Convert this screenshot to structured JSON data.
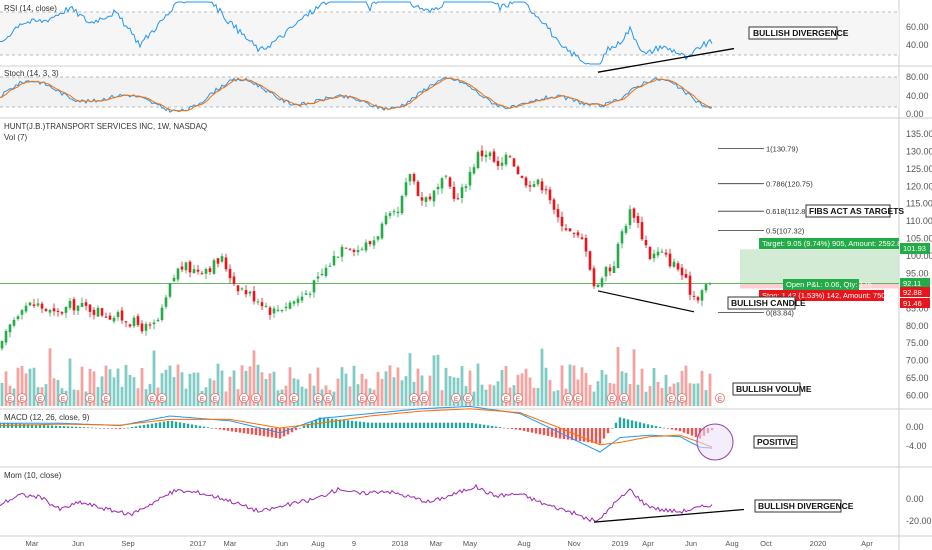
{
  "colors": {
    "up": "#26a69a",
    "down": "#ef5350",
    "candle_up": "#22ab46",
    "candle_down": "#e8161c",
    "rsi": "#2196f3",
    "stoch_k": "#2196f3",
    "stoch_d": "#ff6d00",
    "macd": "#2196f3",
    "signal": "#ff6d00",
    "mom": "#9c27b0",
    "price_line": "#4caf50",
    "target_zone": "#c8e6c9",
    "stop_zone": "#ffcdd2",
    "label_green": "#22ab46",
    "label_red": "#e8161c"
  },
  "panes": {
    "rsi": {
      "title": "RSI (14, close)",
      "ticks": [
        "60.00",
        "40.00"
      ],
      "annotation": "BULLISH DIVERGENCE"
    },
    "stoch": {
      "title": "Stoch (14, 3, 3)",
      "ticks": [
        "80.00",
        "40.00",
        "0.00"
      ]
    },
    "price": {
      "title": "HUNT(J.B.)TRANSPORT SERVICES INC, 1W, NASDAQ",
      "vol_title": "Vol (7)",
      "ticks": [
        "135.00",
        "130.00",
        "125.00",
        "120.00",
        "115.00",
        "110.00",
        "105.00",
        "100.00",
        "95.00",
        "90.00",
        "85.00",
        "80.00",
        "75.00",
        "70.00",
        "65.00",
        "60.00"
      ],
      "price_labels": {
        "upper": "101.93",
        "current": "92.11",
        "stop_top": "92.88",
        "stop_bottom": "91.46"
      },
      "fib_levels": [
        {
          "label": "1(130.79)",
          "value": 130.79
        },
        {
          "label": "0.786(120.75)",
          "value": 120.75
        },
        {
          "label": "0.618(112.86)",
          "value": 112.86
        },
        {
          "label": "0.5(107.32)",
          "value": 107.32
        },
        {
          "label": "0(83.84)",
          "value": 83.84
        }
      ],
      "target_label": "Target: 9.05 (9.74%) 905, Amount: 2592.8",
      "open_label": "Open P&L: 0.06, Qty: 176",
      "stop_label": "Stop: 1.42 (1.53%) 142, Amount: 750.08",
      "annotations": [
        "FIBS ACT AS TARGETS",
        "BULLISH CANDLE",
        "BULLISH VOLUME"
      ]
    },
    "macd": {
      "title": "MACD (12, 26, close, 9)",
      "ticks": [
        "0.00",
        "-4.00"
      ],
      "annotation": "POSITIVE"
    },
    "mom": {
      "title": "Mom (10, close)",
      "ticks": [
        "0.00",
        "-20.00"
      ],
      "annotation": "BULLISH DIVERGENCE"
    }
  },
  "time_axis": [
    "Mar",
    "Jun",
    "Sep",
    "2017",
    "Mar",
    "Jun",
    "Aug",
    "9",
    "2018",
    "Mar",
    "May",
    "Aug",
    "Nov",
    "2019",
    "Apr",
    "Jun",
    "Aug",
    "Oct",
    "2020",
    "Apr"
  ],
  "earnings_marker": "E",
  "chart_data": {
    "type": "candlestick",
    "title": "HUNT(J.B.)TRANSPORT SERVICES INC, 1W, NASDAQ",
    "interval": "1W",
    "price_range": [
      57,
      137
    ],
    "close_path": [
      [
        0,
        73
      ],
      [
        10,
        80
      ],
      [
        22,
        86
      ],
      [
        38,
        86
      ],
      [
        55,
        83
      ],
      [
        72,
        86
      ],
      [
        90,
        85
      ],
      [
        110,
        83
      ],
      [
        125,
        82
      ],
      [
        140,
        80
      ],
      [
        150,
        79
      ],
      [
        160,
        82
      ],
      [
        172,
        93
      ],
      [
        180,
        97
      ],
      [
        195,
        96
      ],
      [
        210,
        97
      ],
      [
        222,
        99
      ],
      [
        235,
        92
      ],
      [
        250,
        89
      ],
      [
        262,
        87
      ],
      [
        272,
        84
      ],
      [
        285,
        86
      ],
      [
        300,
        88
      ],
      [
        315,
        92
      ],
      [
        330,
        98
      ],
      [
        345,
        104
      ],
      [
        358,
        102
      ],
      [
        372,
        104
      ],
      [
        385,
        110
      ],
      [
        398,
        112
      ],
      [
        410,
        124
      ],
      [
        422,
        116
      ],
      [
        435,
        118
      ],
      [
        445,
        122
      ],
      [
        458,
        116
      ],
      [
        470,
        124
      ],
      [
        478,
        129
      ],
      [
        488,
        130
      ],
      [
        498,
        125
      ],
      [
        510,
        129
      ],
      [
        522,
        122
      ],
      [
        535,
        121
      ],
      [
        547,
        120
      ],
      [
        555,
        111
      ],
      [
        562,
        110
      ],
      [
        572,
        106
      ],
      [
        585,
        104
      ],
      [
        596,
        89
      ],
      [
        604,
        97
      ],
      [
        612,
        96
      ],
      [
        622,
        107
      ],
      [
        632,
        114
      ],
      [
        642,
        106
      ],
      [
        650,
        100
      ],
      [
        660,
        101
      ],
      [
        668,
        99
      ],
      [
        680,
        96
      ],
      [
        688,
        91
      ],
      [
        696,
        88
      ],
      [
        704,
        91
      ],
      [
        712,
        92
      ]
    ],
    "fib_levels": [
      130.79,
      120.75,
      112.86,
      107.32,
      83.84
    ],
    "rsi": [
      [
        0,
        45
      ],
      [
        20,
        55
      ],
      [
        45,
        56
      ],
      [
        70,
        62
      ],
      [
        90,
        55
      ],
      [
        115,
        60
      ],
      [
        140,
        45
      ],
      [
        160,
        55
      ],
      [
        180,
        65
      ],
      [
        205,
        68
      ],
      [
        230,
        55
      ],
      [
        260,
        42
      ],
      [
        280,
        48
      ],
      [
        305,
        58
      ],
      [
        330,
        66
      ],
      [
        350,
        72
      ],
      [
        370,
        62
      ],
      [
        395,
        74
      ],
      [
        410,
        64
      ],
      [
        430,
        60
      ],
      [
        455,
        68
      ],
      [
        480,
        70
      ],
      [
        500,
        62
      ],
      [
        520,
        66
      ],
      [
        545,
        55
      ],
      [
        560,
        44
      ],
      [
        575,
        40
      ],
      [
        590,
        35
      ],
      [
        598,
        32
      ],
      [
        606,
        42
      ],
      [
        618,
        45
      ],
      [
        630,
        52
      ],
      [
        645,
        40
      ],
      [
        660,
        44
      ],
      [
        675,
        42
      ],
      [
        688,
        38
      ],
      [
        700,
        44
      ],
      [
        712,
        46
      ]
    ],
    "macd": [
      [
        0,
        1
      ],
      [
        60,
        1
      ],
      [
        120,
        0.5
      ],
      [
        170,
        2.5
      ],
      [
        230,
        1.5
      ],
      [
        280,
        -1
      ],
      [
        320,
        2
      ],
      [
        370,
        3
      ],
      [
        420,
        4
      ],
      [
        470,
        4.5
      ],
      [
        520,
        3
      ],
      [
        560,
        -1
      ],
      [
        600,
        -5
      ],
      [
        620,
        -2
      ],
      [
        650,
        -1.5
      ],
      [
        680,
        -1.8
      ],
      [
        700,
        -4
      ],
      [
        712,
        -4.2
      ]
    ],
    "macd_signal": [
      [
        0,
        0.5
      ],
      [
        60,
        0.8
      ],
      [
        120,
        0.6
      ],
      [
        170,
        1.8
      ],
      [
        230,
        1.8
      ],
      [
        280,
        0
      ],
      [
        320,
        1
      ],
      [
        370,
        2.5
      ],
      [
        420,
        3.5
      ],
      [
        470,
        4
      ],
      [
        520,
        3.2
      ],
      [
        560,
        0
      ],
      [
        600,
        -3.5
      ],
      [
        620,
        -3
      ],
      [
        650,
        -1.8
      ],
      [
        680,
        -1.5
      ],
      [
        700,
        -3
      ],
      [
        712,
        -4
      ]
    ],
    "momentum": [
      [
        0,
        -5
      ],
      [
        20,
        4
      ],
      [
        40,
        2
      ],
      [
        60,
        -10
      ],
      [
        80,
        -3
      ],
      [
        100,
        -8
      ],
      [
        130,
        -15
      ],
      [
        150,
        -5
      ],
      [
        175,
        8
      ],
      [
        200,
        6
      ],
      [
        225,
        0
      ],
      [
        260,
        -12
      ],
      [
        290,
        -5
      ],
      [
        315,
        0
      ],
      [
        340,
        10
      ],
      [
        360,
        5
      ],
      [
        385,
        8
      ],
      [
        410,
        2
      ],
      [
        430,
        -3
      ],
      [
        455,
        5
      ],
      [
        475,
        12
      ],
      [
        495,
        3
      ],
      [
        520,
        5
      ],
      [
        545,
        -5
      ],
      [
        570,
        -12
      ],
      [
        590,
        -20
      ],
      [
        600,
        -20
      ],
      [
        610,
        -8
      ],
      [
        630,
        9
      ],
      [
        645,
        -5
      ],
      [
        660,
        -10
      ],
      [
        680,
        -12
      ],
      [
        700,
        -8
      ],
      [
        712,
        -5
      ]
    ],
    "divergence_lines": {
      "rsi": [
        [
          598,
          32
        ],
        [
          734,
          43
        ]
      ],
      "price": [
        [
          598,
          90
        ],
        [
          694,
          84
        ]
      ],
      "mom": [
        [
          594,
          -22
        ],
        [
          744,
          -10
        ]
      ]
    }
  }
}
